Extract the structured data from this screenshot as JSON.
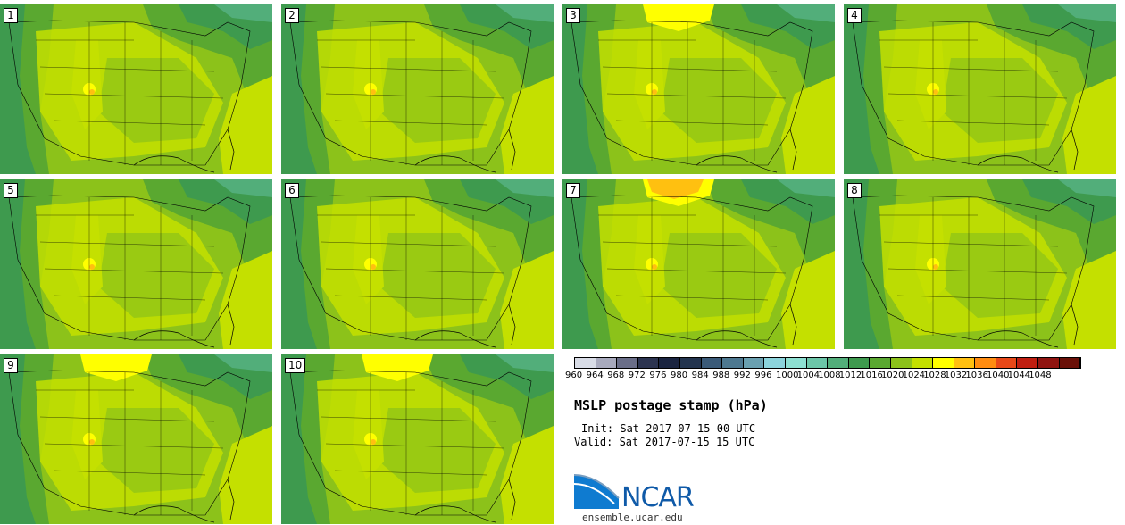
{
  "panels": [
    {
      "label": "1",
      "yellow_north": false,
      "orange_north": false
    },
    {
      "label": "2",
      "yellow_north": false,
      "orange_north": false
    },
    {
      "label": "3",
      "yellow_north": true,
      "orange_north": false
    },
    {
      "label": "4",
      "yellow_north": false,
      "orange_north": false
    },
    {
      "label": "5",
      "yellow_north": false,
      "orange_north": false
    },
    {
      "label": "6",
      "yellow_north": false,
      "orange_north": false
    },
    {
      "label": "7",
      "yellow_north": true,
      "orange_north": true
    },
    {
      "label": "8",
      "yellow_north": false,
      "orange_north": false
    },
    {
      "label": "9",
      "yellow_north": true,
      "orange_north": false
    },
    {
      "label": "10",
      "yellow_north": true,
      "orange_north": false
    }
  ],
  "colorbar": {
    "labels": [
      "960",
      "964",
      "968",
      "972",
      "976",
      "980",
      "984",
      "988",
      "992",
      "996",
      "1000",
      "1004",
      "1008",
      "1012",
      "1016",
      "1020",
      "1024",
      "1028",
      "1032",
      "1036",
      "1040",
      "1044",
      "1048"
    ],
    "colors": [
      "#d8dce6",
      "#a8aabd",
      "#6a6e88",
      "#2c3450",
      "#1a2440",
      "#23344e",
      "#3a5a78",
      "#4d7890",
      "#6aa0b0",
      "#8cd4dc",
      "#8de0d2",
      "#6cc6a8",
      "#52ae7a",
      "#3e9a4e",
      "#5aa830",
      "#8cc21a",
      "#c4e000",
      "#ffff00",
      "#ffc010",
      "#ff8c10",
      "#e84818",
      "#c01e10",
      "#901410",
      "#6a1008"
    ]
  },
  "title": "MSLP postage stamp (hPa)",
  "init": "Init: Sat 2017-07-15 00 UTC",
  "valid": "Valid: Sat 2017-07-15 15 UTC",
  "logo_text": "NCAR",
  "url": "ensemble.ucar.edu"
}
